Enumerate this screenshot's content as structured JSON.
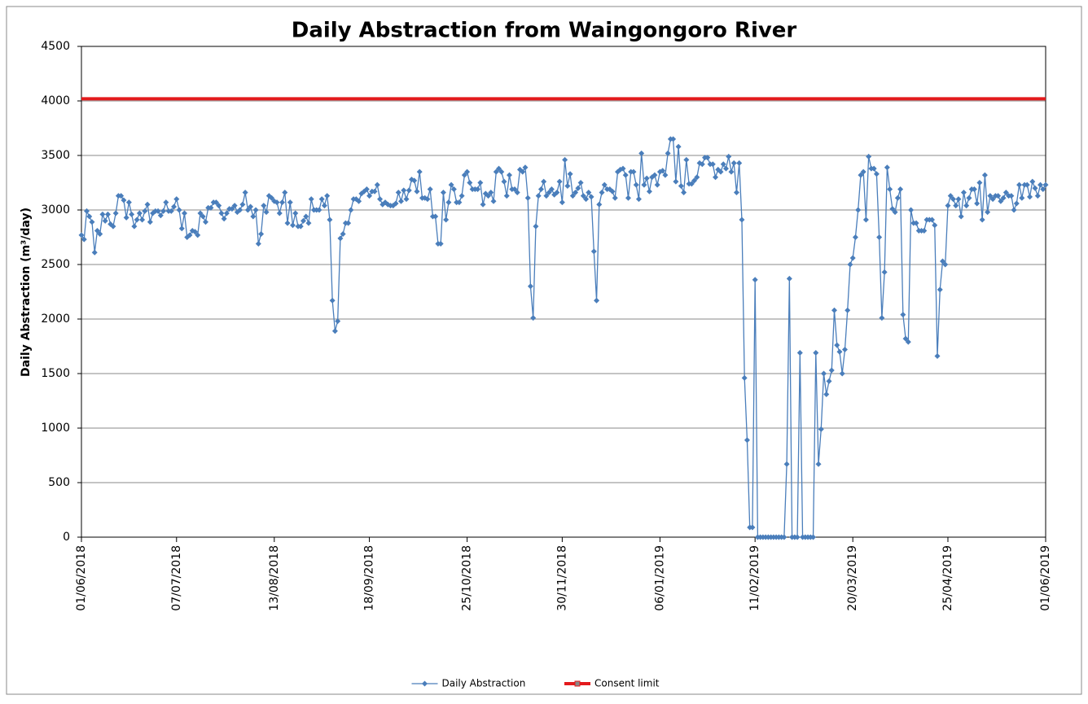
{
  "chart_data": {
    "type": "line",
    "title": "Daily Abstraction from Waingongoro River",
    "y_label": "Daily Abstraction (m³/day)",
    "ylim": [
      0,
      4500
    ],
    "yticks": [
      0,
      500,
      1000,
      1500,
      2000,
      2500,
      3000,
      3500,
      4000,
      4500
    ],
    "xlim": [
      "01/06/2018",
      "01/06/2019"
    ],
    "xticks": [
      "01/06/2018",
      "07/07/2018",
      "13/08/2018",
      "18/09/2018",
      "25/10/2018",
      "30/11/2018",
      "06/01/2019",
      "11/02/2019",
      "20/03/2019",
      "25/04/2019",
      "01/06/2019"
    ],
    "grid": true,
    "legend": "bottom",
    "x": [
      "01/06/2018",
      "02/06/2018",
      "03/06/2018",
      "04/06/2018",
      "05/06/2018",
      "06/06/2018",
      "07/06/2018",
      "08/06/2018",
      "09/06/2018",
      "10/06/2018",
      "11/06/2018",
      "12/06/2018",
      "13/06/2018",
      "14/06/2018",
      "15/06/2018",
      "16/06/2018",
      "17/06/2018",
      "18/06/2018",
      "19/06/2018",
      "20/06/2018",
      "21/06/2018",
      "22/06/2018",
      "23/06/2018",
      "24/06/2018",
      "25/06/2018",
      "26/06/2018",
      "27/06/2018",
      "28/06/2018",
      "29/06/2018",
      "30/06/2018",
      "01/07/2018",
      "02/07/2018",
      "03/07/2018",
      "04/07/2018",
      "05/07/2018",
      "06/07/2018",
      "07/07/2018",
      "08/07/2018",
      "09/07/2018",
      "10/07/2018",
      "11/07/2018",
      "12/07/2018",
      "13/07/2018",
      "14/07/2018",
      "15/07/2018",
      "16/07/2018",
      "17/07/2018",
      "18/07/2018",
      "19/07/2018",
      "20/07/2018",
      "21/07/2018",
      "22/07/2018",
      "23/07/2018",
      "24/07/2018",
      "25/07/2018",
      "26/07/2018",
      "27/07/2018",
      "28/07/2018",
      "29/07/2018",
      "30/07/2018",
      "31/07/2018",
      "01/08/2018",
      "02/08/2018",
      "03/08/2018",
      "04/08/2018",
      "05/08/2018",
      "06/08/2018",
      "07/08/2018",
      "08/08/2018",
      "09/08/2018",
      "10/08/2018",
      "11/08/2018",
      "12/08/2018",
      "13/08/2018",
      "14/08/2018",
      "15/08/2018",
      "16/08/2018",
      "17/08/2018",
      "18/08/2018",
      "19/08/2018",
      "20/08/2018",
      "21/08/2018",
      "22/08/2018",
      "23/08/2018",
      "24/08/2018",
      "25/08/2018",
      "26/08/2018",
      "27/08/2018",
      "28/08/2018",
      "29/08/2018",
      "30/08/2018",
      "31/08/2018",
      "01/09/2018",
      "02/09/2018",
      "03/09/2018",
      "04/09/2018",
      "05/09/2018",
      "06/09/2018",
      "07/09/2018",
      "08/09/2018",
      "09/09/2018",
      "10/09/2018",
      "11/09/2018",
      "12/09/2018",
      "13/09/2018",
      "14/09/2018",
      "15/09/2018",
      "16/09/2018",
      "17/09/2018",
      "18/09/2018",
      "19/09/2018",
      "20/09/2018",
      "21/09/2018",
      "22/09/2018",
      "23/09/2018",
      "24/09/2018",
      "25/09/2018",
      "26/09/2018",
      "27/09/2018",
      "28/09/2018",
      "29/09/2018",
      "30/09/2018",
      "01/10/2018",
      "02/10/2018",
      "03/10/2018",
      "04/10/2018",
      "05/10/2018",
      "06/10/2018",
      "07/10/2018",
      "08/10/2018",
      "09/10/2018",
      "10/10/2018",
      "11/10/2018",
      "12/10/2018",
      "13/10/2018",
      "14/10/2018",
      "15/10/2018",
      "16/10/2018",
      "17/10/2018",
      "18/10/2018",
      "19/10/2018",
      "20/10/2018",
      "21/10/2018",
      "22/10/2018",
      "23/10/2018",
      "24/10/2018",
      "25/10/2018",
      "26/10/2018",
      "27/10/2018",
      "28/10/2018",
      "29/10/2018",
      "30/10/2018",
      "31/10/2018",
      "01/11/2018",
      "02/11/2018",
      "03/11/2018",
      "04/11/2018",
      "05/11/2018",
      "06/11/2018",
      "07/11/2018",
      "08/11/2018",
      "09/11/2018",
      "10/11/2018",
      "11/11/2018",
      "12/11/2018",
      "13/11/2018",
      "14/11/2018",
      "15/11/2018",
      "16/11/2018",
      "17/11/2018",
      "18/11/2018",
      "19/11/2018",
      "20/11/2018",
      "21/11/2018",
      "22/11/2018",
      "23/11/2018",
      "24/11/2018",
      "25/11/2018",
      "26/11/2018",
      "27/11/2018",
      "28/11/2018",
      "29/11/2018",
      "30/11/2018",
      "01/12/2018",
      "02/12/2018",
      "03/12/2018",
      "04/12/2018",
      "05/12/2018",
      "06/12/2018",
      "07/12/2018",
      "08/12/2018",
      "09/12/2018",
      "10/12/2018",
      "11/12/2018",
      "12/12/2018",
      "13/12/2018",
      "14/12/2018",
      "15/12/2018",
      "16/12/2018",
      "17/12/2018",
      "18/12/2018",
      "19/12/2018",
      "20/12/2018",
      "21/12/2018",
      "22/12/2018",
      "23/12/2018",
      "24/12/2018",
      "25/12/2018",
      "26/12/2018",
      "27/12/2018",
      "28/12/2018",
      "29/12/2018",
      "30/12/2018",
      "31/12/2018",
      "01/01/2019",
      "02/01/2019",
      "03/01/2019",
      "04/01/2019",
      "05/01/2019",
      "06/01/2019",
      "07/01/2019",
      "08/01/2019",
      "09/01/2019",
      "10/01/2019",
      "11/01/2019",
      "12/01/2019",
      "13/01/2019",
      "14/01/2019",
      "15/01/2019",
      "16/01/2019",
      "17/01/2019",
      "18/01/2019",
      "19/01/2019",
      "20/01/2019",
      "21/01/2019",
      "22/01/2019",
      "23/01/2019",
      "24/01/2019",
      "25/01/2019",
      "26/01/2019",
      "27/01/2019",
      "28/01/2019",
      "29/01/2019",
      "30/01/2019",
      "31/01/2019",
      "01/02/2019",
      "02/02/2019",
      "03/02/2019",
      "04/02/2019",
      "05/02/2019",
      "06/02/2019",
      "07/02/2019",
      "08/02/2019",
      "09/02/2019",
      "10/02/2019",
      "11/02/2019",
      "12/02/2019",
      "13/02/2019",
      "14/02/2019",
      "15/02/2019",
      "16/02/2019",
      "17/02/2019",
      "18/02/2019",
      "19/02/2019",
      "20/02/2019",
      "21/02/2019",
      "22/02/2019",
      "23/02/2019",
      "24/02/2019",
      "25/02/2019",
      "26/02/2019",
      "27/02/2019",
      "28/02/2019",
      "01/03/2019",
      "02/03/2019",
      "03/03/2019",
      "04/03/2019",
      "05/03/2019",
      "06/03/2019",
      "07/03/2019",
      "08/03/2019",
      "09/03/2019",
      "10/03/2019",
      "11/03/2019",
      "12/03/2019",
      "13/03/2019",
      "14/03/2019",
      "15/03/2019",
      "16/03/2019",
      "17/03/2019",
      "18/03/2019",
      "19/03/2019",
      "20/03/2019",
      "21/03/2019",
      "22/03/2019",
      "23/03/2019",
      "24/03/2019",
      "25/03/2019",
      "26/03/2019",
      "27/03/2019",
      "28/03/2019",
      "29/03/2019",
      "30/03/2019",
      "31/03/2019",
      "01/04/2019",
      "02/04/2019",
      "03/04/2019",
      "04/04/2019",
      "05/04/2019",
      "06/04/2019",
      "07/04/2019",
      "08/04/2019",
      "09/04/2019",
      "10/04/2019",
      "11/04/2019",
      "12/04/2019",
      "13/04/2019",
      "14/04/2019",
      "15/04/2019",
      "16/04/2019",
      "17/04/2019",
      "18/04/2019",
      "19/04/2019",
      "20/04/2019",
      "21/04/2019",
      "22/04/2019",
      "23/04/2019",
      "24/04/2019",
      "25/04/2019",
      "26/04/2019",
      "27/04/2019",
      "28/04/2019",
      "29/04/2019",
      "30/04/2019",
      "01/05/2019",
      "02/05/2019",
      "03/05/2019",
      "04/05/2019",
      "05/05/2019",
      "06/05/2019",
      "07/05/2019",
      "08/05/2019",
      "09/05/2019",
      "10/05/2019",
      "11/05/2019",
      "12/05/2019",
      "13/05/2019",
      "14/05/2019",
      "15/05/2019",
      "16/05/2019",
      "17/05/2019",
      "18/05/2019",
      "19/05/2019",
      "20/05/2019",
      "21/05/2019",
      "22/05/2019",
      "23/05/2019",
      "24/05/2019",
      "25/05/2019",
      "26/05/2019",
      "27/05/2019",
      "28/05/2019",
      "29/05/2019",
      "30/05/2019",
      "31/05/2019",
      "01/06/2019"
    ],
    "series": [
      {
        "name": "Daily Abstraction",
        "color": "#4a7ebb",
        "marker": "diamond",
        "values": [
          2770,
          2730,
          2990,
          2940,
          2890,
          2610,
          2810,
          2780,
          2960,
          2900,
          2960,
          2870,
          2850,
          2970,
          3130,
          3130,
          3090,
          2930,
          3070,
          2960,
          2850,
          2910,
          2970,
          2910,
          2990,
          3050,
          2890,
          2970,
          2990,
          2990,
          2950,
          2990,
          3070,
          2990,
          2990,
          3030,
          3100,
          3000,
          2830,
          2970,
          2750,
          2770,
          2810,
          2800,
          2770,
          2970,
          2940,
          2890,
          3020,
          3020,
          3070,
          3070,
          3040,
          2970,
          2920,
          2970,
          3010,
          3010,
          3040,
          2980,
          3000,
          3050,
          3160,
          3000,
          3030,
          2940,
          3000,
          2690,
          2780,
          3040,
          2980,
          3130,
          3110,
          3080,
          3070,
          2970,
          3070,
          3160,
          2880,
          3070,
          2860,
          2970,
          2850,
          2850,
          2900,
          2940,
          2880,
          3100,
          3000,
          3000,
          3000,
          3100,
          3040,
          3130,
          2910,
          2170,
          1890,
          1980,
          2740,
          2780,
          2880,
          2880,
          3000,
          3100,
          3100,
          3080,
          3150,
          3170,
          3190,
          3130,
          3170,
          3170,
          3230,
          3100,
          3050,
          3070,
          3050,
          3040,
          3040,
          3060,
          3160,
          3080,
          3180,
          3100,
          3180,
          3280,
          3270,
          3170,
          3350,
          3110,
          3110,
          3100,
          3190,
          2940,
          2940,
          2690,
          2690,
          3160,
          2910,
          3070,
          3230,
          3190,
          3070,
          3070,
          3130,
          3320,
          3350,
          3250,
          3190,
          3190,
          3190,
          3250,
          3050,
          3150,
          3130,
          3160,
          3080,
          3350,
          3380,
          3350,
          3260,
          3130,
          3320,
          3190,
          3190,
          3160,
          3370,
          3350,
          3390,
          3110,
          2300,
          2010,
          2850,
          3130,
          3190,
          3260,
          3130,
          3160,
          3190,
          3140,
          3160,
          3260,
          3070,
          3460,
          3220,
          3330,
          3130,
          3160,
          3200,
          3250,
          3130,
          3100,
          3160,
          3120,
          2620,
          2170,
          3050,
          3160,
          3230,
          3190,
          3190,
          3170,
          3110,
          3350,
          3370,
          3380,
          3320,
          3110,
          3350,
          3350,
          3230,
          3100,
          3520,
          3230,
          3290,
          3170,
          3300,
          3320,
          3230,
          3350,
          3360,
          3320,
          3520,
          3650,
          3650,
          3260,
          3580,
          3220,
          3160,
          3460,
          3240,
          3240,
          3270,
          3300,
          3430,
          3420,
          3480,
          3480,
          3420,
          3420,
          3300,
          3370,
          3350,
          3420,
          3380,
          3490,
          3350,
          3430,
          3160,
          3430,
          2910,
          1460,
          890,
          90,
          90,
          2360,
          0,
          0,
          0,
          0,
          0,
          0,
          0,
          0,
          0,
          0,
          0,
          670,
          2370,
          0,
          0,
          0,
          1690,
          0,
          0,
          0,
          0,
          0,
          1690,
          670,
          990,
          1500,
          1310,
          1430,
          1530,
          2080,
          1760,
          1700,
          1500,
          1720,
          2080,
          2500,
          2560,
          2750,
          3000,
          3320,
          3350,
          2910,
          3490,
          3380,
          3380,
          3330,
          2750,
          2010,
          2430,
          3390,
          3190,
          3010,
          2980,
          3110,
          3190,
          2040,
          1820,
          1790,
          3000,
          2880,
          2880,
          2810,
          2810,
          2810,
          2910,
          2910,
          2910,
          2860,
          1660,
          2270,
          2530,
          2500,
          3040,
          3130,
          3100,
          3040,
          3100,
          2940,
          3160,
          3040,
          3110,
          3190,
          3190,
          3060,
          3250,
          2910,
          3320,
          2980,
          3130,
          3100,
          3130,
          3130,
          3080,
          3110,
          3160,
          3130,
          3130,
          3000,
          3060,
          3230,
          3110,
          3230,
          3230,
          3120,
          3260,
          3200,
          3130,
          3230,
          3190,
          3230
        ]
      },
      {
        "name": "Consent limit",
        "color": "#e31a1c",
        "marker": "square",
        "x": [
          "01/06/2018",
          "01/06/2019"
        ],
        "values": [
          4020,
          4020
        ]
      }
    ]
  }
}
